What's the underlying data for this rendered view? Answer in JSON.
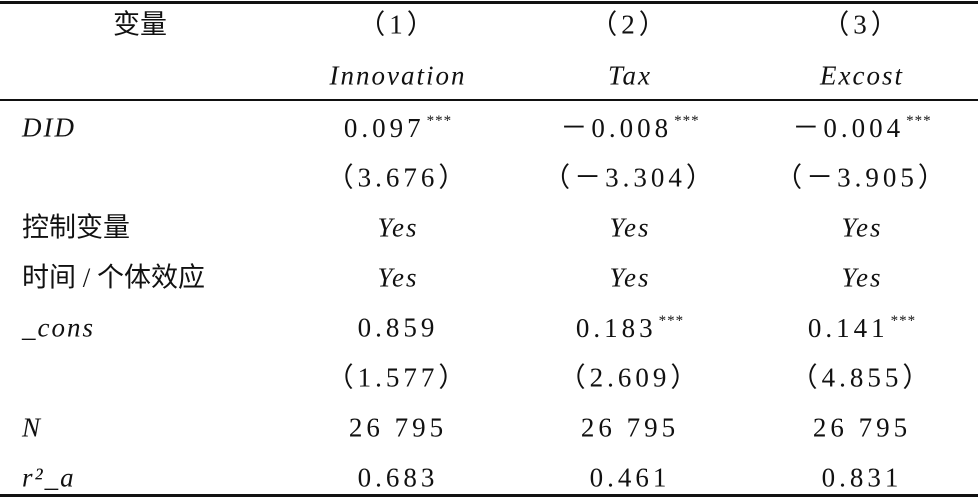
{
  "table": {
    "header": [
      "变量",
      "（1）",
      "（2）",
      "（3）"
    ],
    "subheader": [
      "Innovation",
      "Tax",
      "Excost"
    ],
    "rows": [
      {
        "label": "DID",
        "cells": [
          {
            "value": "0.097",
            "stars": "***"
          },
          {
            "value": "－0.008",
            "stars": "***"
          },
          {
            "value": "－0.004",
            "stars": "***"
          }
        ]
      },
      {
        "cells": [
          {
            "value": "（3.676）"
          },
          {
            "value": "（－3.304）"
          },
          {
            "value": "（－3.905）"
          }
        ]
      },
      {
        "label": "控制变量",
        "cells": [
          {
            "value": "Yes"
          },
          {
            "value": "Yes"
          },
          {
            "value": "Yes"
          }
        ]
      },
      {
        "label": "时间 / 个体效应",
        "cells": [
          {
            "value": "Yes"
          },
          {
            "value": "Yes"
          },
          {
            "value": "Yes"
          }
        ]
      },
      {
        "label": "_cons",
        "cells": [
          {
            "value": "0.859"
          },
          {
            "value": "0.183",
            "stars": "***"
          },
          {
            "value": "0.141",
            "stars": "***"
          }
        ]
      },
      {
        "cells": [
          {
            "value": "（1.577）"
          },
          {
            "value": "（2.609）"
          },
          {
            "value": "（4.855）"
          }
        ]
      },
      {
        "label": "N",
        "cells": [
          {
            "value": "26 795"
          },
          {
            "value": "26 795"
          },
          {
            "value": "26 795"
          }
        ]
      },
      {
        "label": "r²_a",
        "cells": [
          {
            "value": "0.683"
          },
          {
            "value": "0.461"
          },
          {
            "value": "0.831"
          }
        ]
      }
    ]
  }
}
